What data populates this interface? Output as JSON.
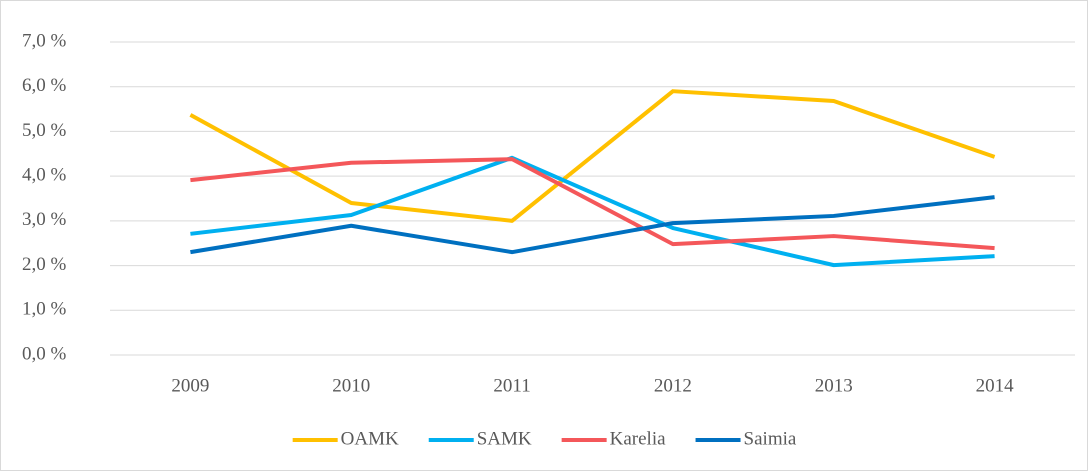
{
  "chart_data": {
    "type": "line",
    "categories": [
      "2009",
      "2010",
      "2011",
      "2012",
      "2013",
      "2014"
    ],
    "series": [
      {
        "name": "OAMK",
        "color": "#ffc000",
        "values": [
          5.37,
          3.4,
          3.0,
          5.9,
          5.68,
          4.43
        ]
      },
      {
        "name": "SAMK",
        "color": "#00b0f0",
        "values": [
          2.71,
          3.13,
          4.41,
          2.84,
          2.01,
          2.21
        ]
      },
      {
        "name": "Karelia",
        "color": "#f4575a",
        "values": [
          3.91,
          4.3,
          4.38,
          2.48,
          2.66,
          2.39
        ]
      },
      {
        "name": "Saimia",
        "color": "#0070c0",
        "values": [
          2.3,
          2.89,
          2.3,
          2.95,
          3.11,
          3.53
        ]
      }
    ],
    "ylim": [
      0,
      7
    ],
    "yticks": [
      {
        "value": 0,
        "label": "0,0 %"
      },
      {
        "value": 1,
        "label": "1,0 %"
      },
      {
        "value": 2,
        "label": "2,0 %"
      },
      {
        "value": 3,
        "label": "3,0 %"
      },
      {
        "value": 4,
        "label": "4,0 %"
      },
      {
        "value": 5,
        "label": "5,0 %"
      },
      {
        "value": 6,
        "label": "6,0 %"
      },
      {
        "value": 7,
        "label": "7,0 %"
      }
    ],
    "grid": true,
    "legend": "bottom"
  }
}
